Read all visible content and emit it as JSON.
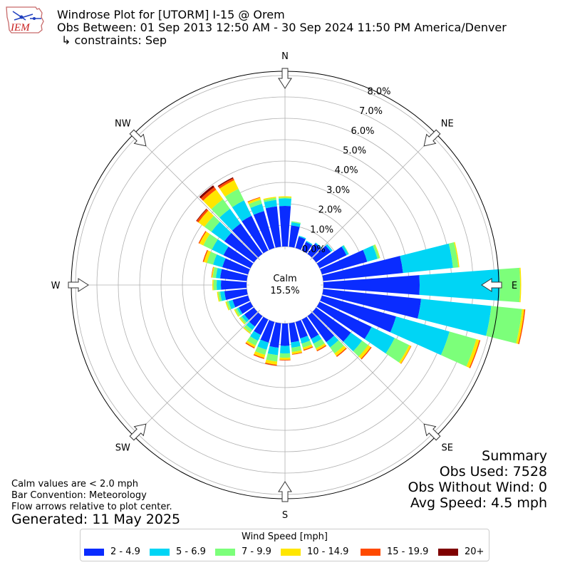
{
  "header": {
    "title": "Windrose Plot for [UTORM] I-15 @ Orem",
    "subtitle": "Obs Between: 01 Sep 2013 12:50 AM - 30 Sep 2024 11:50 PM America/Denver",
    "constraints": "↳ constraints: Sep",
    "logo_text": "IEM"
  },
  "summary": {
    "title": "Summary",
    "obs_used": "Obs Used: 7528",
    "obs_without_wind": "Obs Without Wind: 0",
    "avg_speed": "Avg Speed: 4.5 mph"
  },
  "notes": {
    "calm_note": "Calm values are < 2.0 mph",
    "bar_convention": "Bar Convention: Meteorology",
    "flow_arrows": "Flow arrows relative to plot center.",
    "generated": "Generated: 11 May 2025"
  },
  "legend": {
    "title": "Wind Speed [mph]",
    "items": [
      {
        "label": "2 - 4.9",
        "color": "#0a2cff"
      },
      {
        "label": "5 - 6.9",
        "color": "#00d5f5"
      },
      {
        "label": "7 - 9.9",
        "color": "#7cff7a"
      },
      {
        "label": "10 - 14.9",
        "color": "#ffe600"
      },
      {
        "label": "15 - 19.9",
        "color": "#ff4a00"
      },
      {
        "label": "20+",
        "color": "#7f0000"
      }
    ]
  },
  "chart_data": {
    "type": "windrose",
    "radial_unit": "percent",
    "rlim": [
      -1.8,
      8.2
    ],
    "rticks": [
      0,
      1,
      2,
      3,
      4,
      5,
      6,
      7,
      8
    ],
    "rtick_labels": [
      "0.0%",
      "1.0%",
      "2.0%",
      "3.0%",
      "4.0%",
      "5.0%",
      "6.0%",
      "7.0%",
      "8.0%"
    ],
    "rtick_label_bearing_deg": 22.5,
    "calm_label": "Calm",
    "calm_value": "15.5%",
    "compass_labels": [
      "N",
      "NE",
      "E",
      "SE",
      "S",
      "SW",
      "W",
      "NW"
    ],
    "grid": true,
    "bin_width_deg": 10,
    "series_names": [
      "2 - 4.9",
      "5 - 6.9",
      "7 - 9.9",
      "10 - 14.9",
      "15 - 19.9",
      "20+"
    ],
    "directions_deg": [
      0,
      10,
      20,
      30,
      40,
      50,
      60,
      70,
      80,
      90,
      100,
      110,
      120,
      130,
      140,
      150,
      160,
      170,
      180,
      190,
      200,
      210,
      220,
      230,
      240,
      250,
      260,
      270,
      280,
      290,
      300,
      310,
      320,
      330,
      340,
      350
    ],
    "values": [
      [
        1.9,
        0.35,
        0.05,
        0.05,
        0,
        0
      ],
      [
        1.0,
        0.15,
        0.05,
        0,
        0,
        0
      ],
      [
        0.55,
        0.05,
        0,
        0,
        0,
        0
      ],
      [
        0.45,
        0.05,
        0,
        0,
        0,
        0
      ],
      [
        0.6,
        0.05,
        0,
        0,
        0,
        0
      ],
      [
        0.85,
        0.1,
        0,
        0,
        0,
        0
      ],
      [
        1.4,
        0.1,
        0.03,
        0,
        0,
        0
      ],
      [
        2.2,
        0.5,
        0.1,
        0.03,
        0,
        0
      ],
      [
        3.75,
        2.35,
        0.25,
        0.05,
        0,
        0
      ],
      [
        4.5,
        3.75,
        0.95,
        0.05,
        0,
        0
      ],
      [
        4.6,
        3.3,
        1.45,
        0.1,
        0.05,
        0
      ],
      [
        3.6,
        2.6,
        1.3,
        0.15,
        0.05,
        0
      ],
      [
        2.7,
        1.2,
        0.75,
        0.1,
        0.02,
        0
      ],
      [
        2.0,
        0.65,
        0.35,
        0.15,
        0.05,
        0
      ],
      [
        1.5,
        0.3,
        0.35,
        0.15,
        0.05,
        0
      ],
      [
        1.0,
        0.25,
        0.25,
        0.1,
        0.05,
        0
      ],
      [
        0.8,
        0.25,
        0.2,
        0.1,
        0.05,
        0
      ],
      [
        0.9,
        0.25,
        0.2,
        0.1,
        0.03,
        0
      ],
      [
        1.05,
        0.35,
        0.2,
        0.1,
        0.03,
        0
      ],
      [
        1.15,
        0.35,
        0.3,
        0.15,
        0.05,
        0
      ],
      [
        1.0,
        0.35,
        0.25,
        0.15,
        0.05,
        0
      ],
      [
        0.8,
        0.3,
        0.25,
        0.1,
        0.05,
        0
      ],
      [
        0.6,
        0.2,
        0.15,
        0.05,
        0,
        0
      ],
      [
        0.55,
        0.15,
        0.1,
        0.05,
        0,
        0
      ],
      [
        0.6,
        0.1,
        0.1,
        0.05,
        0,
        0
      ],
      [
        0.75,
        0.2,
        0.1,
        0.05,
        0,
        0
      ],
      [
        1.05,
        0.2,
        0.1,
        0.05,
        0,
        0
      ],
      [
        1.2,
        0.2,
        0.15,
        0.05,
        0,
        0
      ],
      [
        1.25,
        0.2,
        0.15,
        0.05,
        0.02,
        0
      ],
      [
        1.25,
        0.45,
        0.3,
        0.15,
        0.05,
        0
      ],
      [
        1.4,
        0.6,
        0.45,
        0.2,
        0.05,
        0
      ],
      [
        1.7,
        0.75,
        0.4,
        0.35,
        0.1,
        0.03
      ],
      [
        1.75,
        0.85,
        0.55,
        0.55,
        0.15,
        0.1
      ],
      [
        1.8,
        0.8,
        0.6,
        0.45,
        0.1,
        0.05
      ],
      [
        1.8,
        0.35,
        0.2,
        0.1,
        0.03,
        0
      ],
      [
        1.9,
        0.3,
        0.1,
        0.05,
        0,
        0
      ]
    ]
  }
}
